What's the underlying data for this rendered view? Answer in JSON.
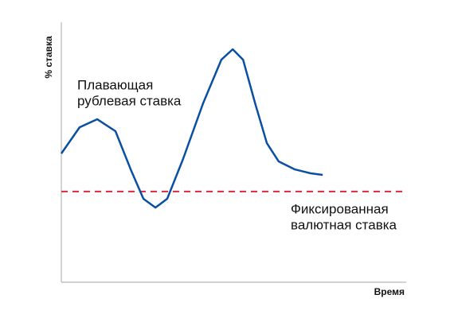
{
  "chart_data": {
    "type": "line",
    "ylabel": "% ставка",
    "xlabel": "Время",
    "xlim": [
      0,
      100
    ],
    "ylim": [
      0,
      100
    ],
    "x": [
      0,
      5.3,
      10.4,
      15.7,
      20.3,
      23.8,
      27.3,
      30.7,
      35.3,
      41.1,
      46.4,
      49.7,
      52.7,
      56.2,
      59.6,
      63.0,
      67.7,
      72.3,
      75.8
    ],
    "series": [
      {
        "color": "#0a4fa3",
        "values": [
          49.5,
          59.6,
          62.7,
          58.1,
          42.8,
          32.1,
          28.7,
          32.1,
          47.4,
          68.8,
          85.6,
          89.6,
          85.6,
          68.8,
          53.5,
          46.5,
          43.4,
          41.9,
          41.3
        ]
      }
    ],
    "reference_line": {
      "value": 34.9,
      "color": "#e0263b"
    },
    "annotations": [
      {
        "lines": [
          "Плавающая",
          "рублевая ставка"
        ]
      },
      {
        "lines": [
          "Фиксированная",
          "валютная ставка"
        ]
      }
    ]
  }
}
